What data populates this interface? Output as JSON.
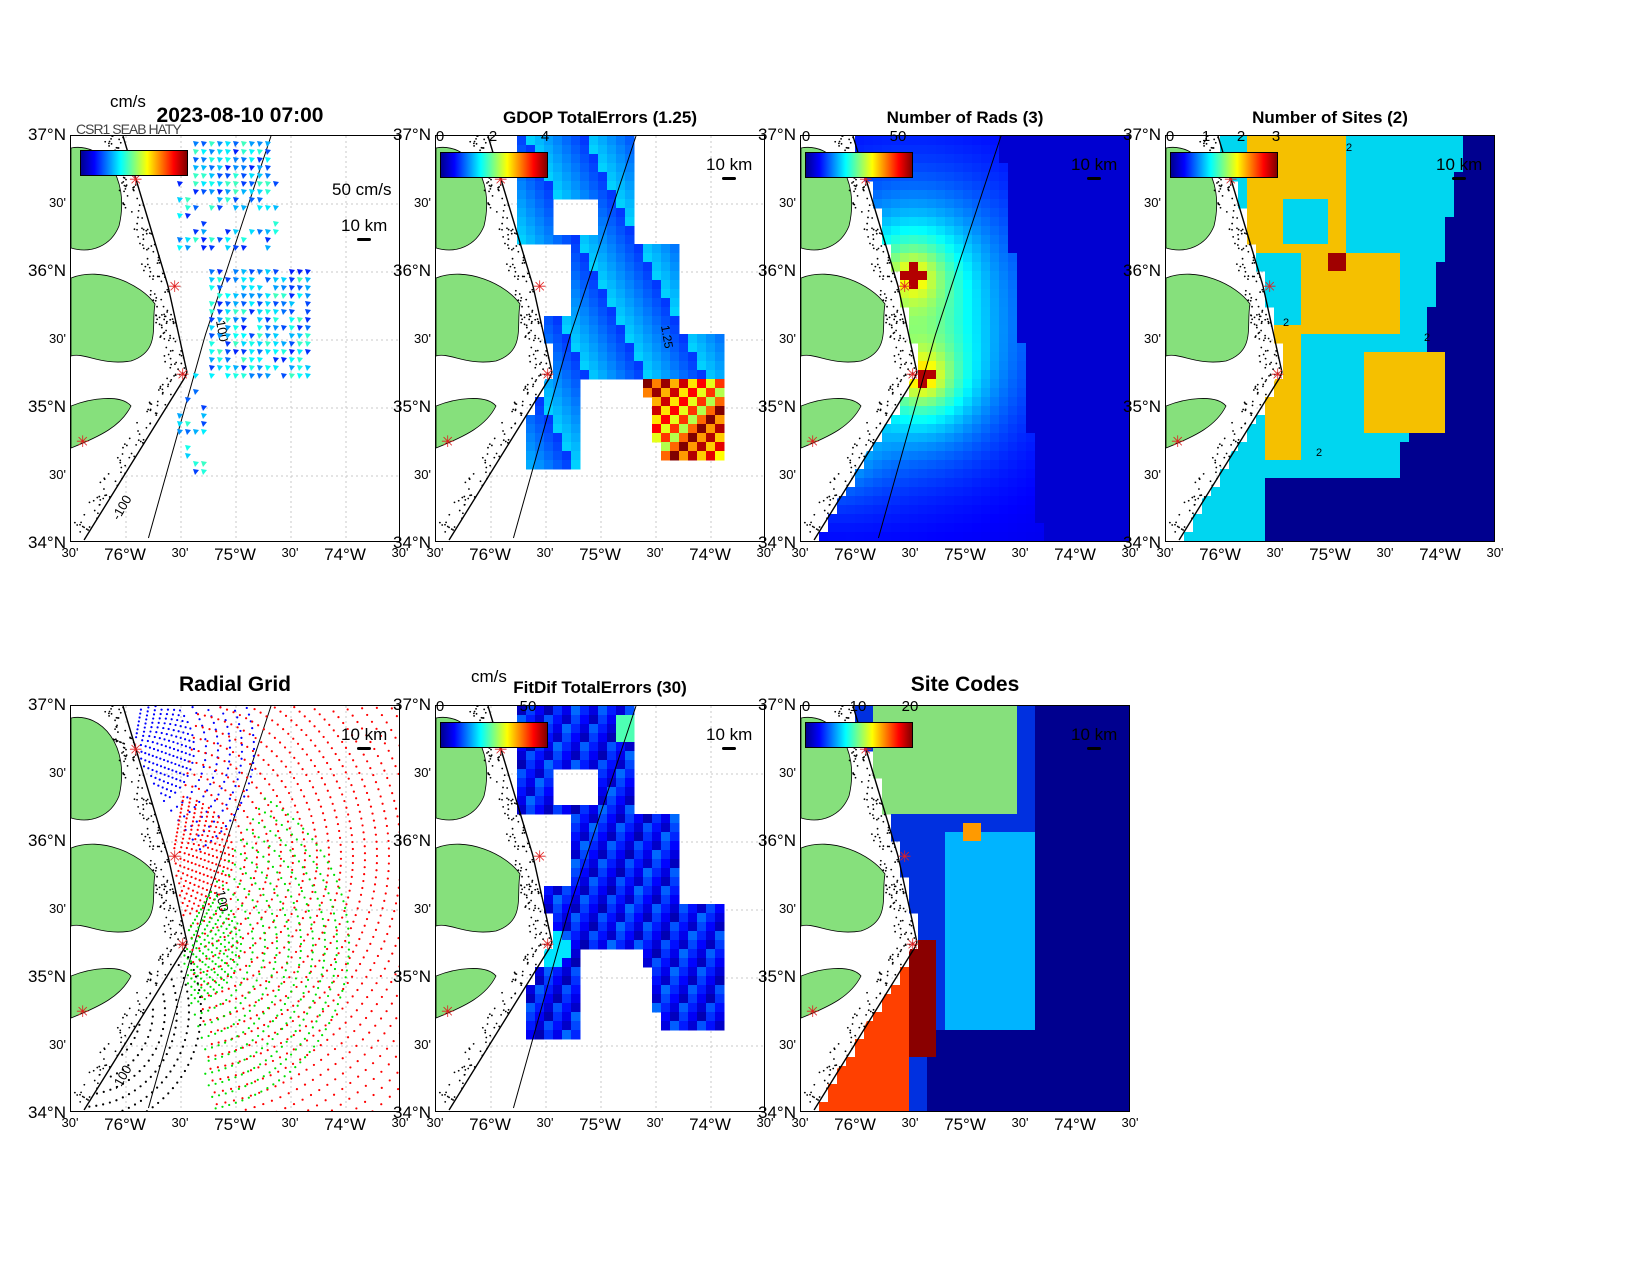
{
  "figure": {
    "timestamp": "2023-08-10 07:00",
    "overlap_text": "CSR1 SEAB HATY"
  },
  "axes": {
    "y_major": [
      "37°N",
      "36°N",
      "35°N",
      "34°N"
    ],
    "y_minor": "30'",
    "x_major": [
      "76°W",
      "75°W",
      "74°W"
    ],
    "x_minor": "30'"
  },
  "scale_bar": "10 km",
  "panels": [
    {
      "id": "totals",
      "title": "2023-08-10 07:00",
      "cbar_unit": "cm/s",
      "cbar_ticks": [],
      "ref_vector": "50 cm/s",
      "contour_label": "100",
      "contour_label2": "-100"
    },
    {
      "id": "gdop",
      "title": "GDOP TotalErrors (1.25)",
      "cbar_unit": "",
      "cbar_ticks": [
        "0",
        "2",
        "4"
      ],
      "contour_label": "1.25"
    },
    {
      "id": "nrads",
      "title": "Number of Rads (3)",
      "cbar_unit": "",
      "cbar_ticks": [
        "0",
        "50"
      ]
    },
    {
      "id": "nsites",
      "title": "Number of Sites (2)",
      "cbar_unit": "",
      "cbar_ticks": [
        "0",
        "1",
        "2",
        "3"
      ],
      "contour_label": "2"
    },
    {
      "id": "radgrid",
      "title": "Radial Grid",
      "cbar_unit": "",
      "cbar_ticks": [],
      "contour_label": "100",
      "contour_label2": "-100"
    },
    {
      "id": "fitdif",
      "title": "FitDif TotalErrors (30)",
      "cbar_unit": "cm/s",
      "cbar_ticks": [
        "0",
        "50"
      ]
    },
    {
      "id": "sitecodes",
      "title": "Site Codes",
      "cbar_unit": "",
      "cbar_ticks": [
        "0",
        "10",
        "20"
      ]
    }
  ],
  "colors": {
    "land": "#86e07c",
    "ocean_bg": "#ffffff",
    "site_marker": "#e02020",
    "deep_blue": "#00008f",
    "grid_red": "#ff0000",
    "grid_blue": "#0000ff",
    "grid_green": "#00e000",
    "grid_black": "#000000"
  }
}
